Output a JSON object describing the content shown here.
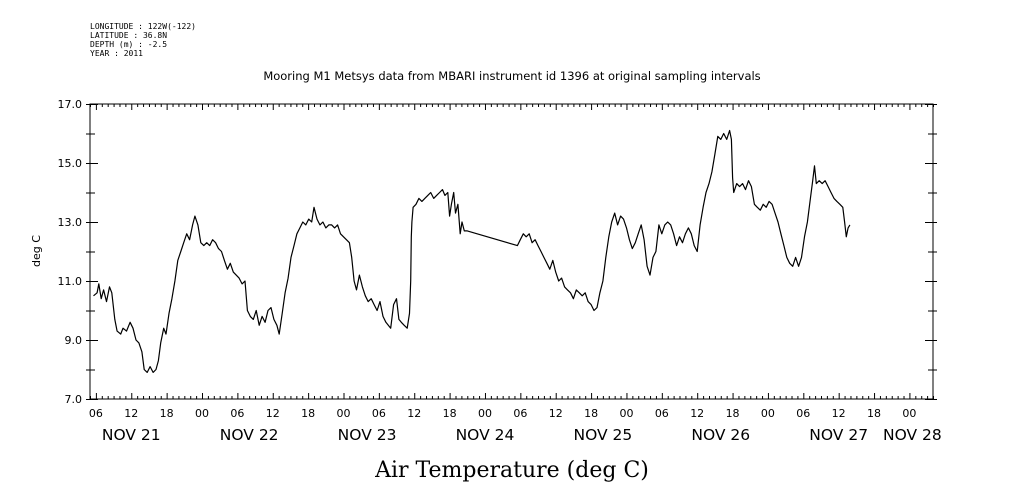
{
  "header": {
    "lines": [
      "LONGITUDE : 122W(-122)",
      "LATITUDE : 36.8N",
      "DEPTH (m) : -2.5",
      "YEAR : 2011"
    ]
  },
  "chart_data": {
    "type": "line",
    "title": "Mooring M1 Metsys data from MBARI instrument id 1396 at original sampling intervals",
    "xlabel": "Air Temperature (deg C)",
    "ylabel": "deg C",
    "ylim": [
      7.0,
      17.0
    ],
    "yticks": [
      "7.0",
      "9.0",
      "11.0",
      "13.0",
      "15.0",
      "17.0"
    ],
    "x_unit": "hours since 00Z NOV 21 2011",
    "xlim": [
      5,
      148
    ],
    "hour_ticks": [
      {
        "h": 6,
        "label": "06"
      },
      {
        "h": 12,
        "label": "12"
      },
      {
        "h": 18,
        "label": "18"
      },
      {
        "h": 24,
        "label": "00"
      },
      {
        "h": 30,
        "label": "06"
      },
      {
        "h": 36,
        "label": "12"
      },
      {
        "h": 42,
        "label": "18"
      },
      {
        "h": 48,
        "label": "00"
      },
      {
        "h": 54,
        "label": "06"
      },
      {
        "h": 60,
        "label": "12"
      },
      {
        "h": 66,
        "label": "18"
      },
      {
        "h": 72,
        "label": "00"
      },
      {
        "h": 78,
        "label": "06"
      },
      {
        "h": 84,
        "label": "12"
      },
      {
        "h": 90,
        "label": "18"
      },
      {
        "h": 96,
        "label": "00"
      },
      {
        "h": 102,
        "label": "06"
      },
      {
        "h": 108,
        "label": "12"
      },
      {
        "h": 114,
        "label": "18"
      },
      {
        "h": 120,
        "label": "00"
      },
      {
        "h": 126,
        "label": "06"
      },
      {
        "h": 132,
        "label": "12"
      },
      {
        "h": 138,
        "label": "18"
      },
      {
        "h": 144,
        "label": "00"
      }
    ],
    "day_labels": [
      {
        "h": 12,
        "label": "NOV 21"
      },
      {
        "h": 32,
        "label": "NOV 22"
      },
      {
        "h": 52,
        "label": "NOV 23"
      },
      {
        "h": 72,
        "label": "NOV 24"
      },
      {
        "h": 92,
        "label": "NOV 25"
      },
      {
        "h": 112,
        "label": "NOV 26"
      },
      {
        "h": 132,
        "label": "NOV 27"
      },
      {
        "h": 144.5,
        "label": "NOV 28"
      }
    ],
    "series": [
      {
        "color": "#000000",
        "points": [
          [
            5.6,
            10.5
          ],
          [
            6.2,
            10.6
          ],
          [
            6.5,
            10.9
          ],
          [
            6.9,
            10.4
          ],
          [
            7.3,
            10.7
          ],
          [
            7.8,
            10.3
          ],
          [
            8.3,
            10.8
          ],
          [
            8.7,
            10.6
          ],
          [
            9.2,
            9.7
          ],
          [
            9.6,
            9.3
          ],
          [
            10.2,
            9.2
          ],
          [
            10.6,
            9.4
          ],
          [
            11.2,
            9.3
          ],
          [
            11.8,
            9.6
          ],
          [
            12.3,
            9.4
          ],
          [
            12.8,
            9.0
          ],
          [
            13.3,
            8.9
          ],
          [
            13.8,
            8.6
          ],
          [
            14.2,
            8.0
          ],
          [
            14.7,
            7.9
          ],
          [
            15.2,
            8.1
          ],
          [
            15.7,
            7.9
          ],
          [
            16.2,
            8.0
          ],
          [
            16.6,
            8.3
          ],
          [
            17.0,
            8.9
          ],
          [
            17.5,
            9.4
          ],
          [
            17.9,
            9.2
          ],
          [
            18.4,
            9.9
          ],
          [
            18.9,
            10.4
          ],
          [
            19.4,
            11.0
          ],
          [
            19.9,
            11.7
          ],
          [
            20.4,
            12.0
          ],
          [
            20.9,
            12.3
          ],
          [
            21.4,
            12.6
          ],
          [
            21.9,
            12.4
          ],
          [
            22.4,
            12.9
          ],
          [
            22.8,
            13.2
          ],
          [
            23.3,
            12.9
          ],
          [
            23.8,
            12.3
          ],
          [
            24.3,
            12.2
          ],
          [
            24.8,
            12.3
          ],
          [
            25.3,
            12.2
          ],
          [
            25.8,
            12.4
          ],
          [
            26.3,
            12.3
          ],
          [
            26.8,
            12.1
          ],
          [
            27.3,
            12.0
          ],
          [
            27.8,
            11.7
          ],
          [
            28.3,
            11.4
          ],
          [
            28.8,
            11.6
          ],
          [
            29.3,
            11.3
          ],
          [
            29.8,
            11.2
          ],
          [
            30.3,
            11.1
          ],
          [
            30.8,
            10.9
          ],
          [
            31.3,
            11.0
          ],
          [
            31.7,
            10.0
          ],
          [
            32.2,
            9.8
          ],
          [
            32.7,
            9.7
          ],
          [
            33.2,
            10.0
          ],
          [
            33.7,
            9.5
          ],
          [
            34.2,
            9.8
          ],
          [
            34.7,
            9.6
          ],
          [
            35.2,
            10.0
          ],
          [
            35.7,
            10.1
          ],
          [
            36.2,
            9.7
          ],
          [
            36.7,
            9.5
          ],
          [
            37.1,
            9.2
          ],
          [
            37.6,
            9.9
          ],
          [
            38.1,
            10.6
          ],
          [
            38.6,
            11.1
          ],
          [
            39.1,
            11.8
          ],
          [
            39.6,
            12.2
          ],
          [
            40.1,
            12.6
          ],
          [
            40.6,
            12.8
          ],
          [
            41.1,
            13.0
          ],
          [
            41.6,
            12.9
          ],
          [
            42.1,
            13.1
          ],
          [
            42.6,
            13.0
          ],
          [
            43.0,
            13.5
          ],
          [
            43.5,
            13.1
          ],
          [
            44.0,
            12.9
          ],
          [
            44.5,
            13.0
          ],
          [
            45.0,
            12.8
          ],
          [
            45.5,
            12.9
          ],
          [
            46.0,
            12.9
          ],
          [
            46.5,
            12.8
          ],
          [
            47.0,
            12.9
          ],
          [
            47.5,
            12.6
          ],
          [
            48.0,
            12.5
          ],
          [
            48.5,
            12.4
          ],
          [
            49.0,
            12.3
          ],
          [
            49.4,
            11.8
          ],
          [
            49.8,
            11.0
          ],
          [
            50.2,
            10.7
          ],
          [
            50.7,
            11.2
          ],
          [
            51.2,
            10.8
          ],
          [
            51.7,
            10.5
          ],
          [
            52.2,
            10.3
          ],
          [
            52.7,
            10.4
          ],
          [
            53.2,
            10.2
          ],
          [
            53.7,
            10.0
          ],
          [
            54.2,
            10.3
          ],
          [
            54.7,
            9.8
          ],
          [
            55.2,
            9.6
          ],
          [
            55.6,
            9.5
          ],
          [
            56.0,
            9.4
          ],
          [
            56.5,
            10.2
          ],
          [
            57.0,
            10.4
          ],
          [
            57.4,
            9.7
          ],
          [
            57.8,
            9.6
          ],
          [
            58.3,
            9.5
          ],
          [
            58.8,
            9.4
          ],
          [
            59.2,
            9.9
          ],
          [
            59.4,
            11.0
          ],
          [
            59.5,
            12.5
          ],
          [
            59.6,
            13.0
          ],
          [
            59.8,
            13.5
          ],
          [
            60.3,
            13.6
          ],
          [
            60.8,
            13.8
          ],
          [
            61.3,
            13.7
          ],
          [
            61.8,
            13.8
          ],
          [
            62.3,
            13.9
          ],
          [
            62.8,
            14.0
          ],
          [
            63.3,
            13.8
          ],
          [
            63.8,
            13.9
          ],
          [
            64.3,
            14.0
          ],
          [
            64.8,
            14.1
          ],
          [
            65.2,
            13.9
          ],
          [
            65.7,
            14.0
          ],
          [
            66.0,
            13.2
          ],
          [
            66.3,
            13.6
          ],
          [
            66.7,
            14.0
          ],
          [
            67.0,
            13.3
          ],
          [
            67.4,
            13.6
          ],
          [
            67.8,
            12.6
          ],
          [
            68.1,
            13.0
          ],
          [
            68.5,
            12.7
          ],
          [
            69.0,
            12.7
          ],
          [
            77.5,
            12.2
          ],
          [
            78.0,
            12.4
          ],
          [
            78.5,
            12.6
          ],
          [
            79.0,
            12.5
          ],
          [
            79.5,
            12.6
          ],
          [
            80.0,
            12.3
          ],
          [
            80.5,
            12.4
          ],
          [
            81.0,
            12.2
          ],
          [
            81.5,
            12.0
          ],
          [
            82.0,
            11.8
          ],
          [
            82.5,
            11.6
          ],
          [
            83.0,
            11.4
          ],
          [
            83.5,
            11.7
          ],
          [
            84.0,
            11.3
          ],
          [
            84.5,
            11.0
          ],
          [
            85.0,
            11.1
          ],
          [
            85.5,
            10.8
          ],
          [
            86.0,
            10.7
          ],
          [
            86.5,
            10.6
          ],
          [
            87.0,
            10.4
          ],
          [
            87.5,
            10.7
          ],
          [
            88.0,
            10.6
          ],
          [
            88.5,
            10.5
          ],
          [
            89.0,
            10.6
          ],
          [
            89.5,
            10.3
          ],
          [
            90.0,
            10.2
          ],
          [
            90.5,
            10.0
          ],
          [
            91.0,
            10.1
          ],
          [
            91.5,
            10.6
          ],
          [
            92.0,
            11.0
          ],
          [
            92.5,
            11.8
          ],
          [
            93.0,
            12.5
          ],
          [
            93.5,
            13.0
          ],
          [
            94.0,
            13.3
          ],
          [
            94.5,
            12.9
          ],
          [
            95.0,
            13.2
          ],
          [
            95.5,
            13.1
          ],
          [
            96.0,
            12.8
          ],
          [
            96.5,
            12.4
          ],
          [
            97.0,
            12.1
          ],
          [
            97.5,
            12.3
          ],
          [
            98.0,
            12.6
          ],
          [
            98.5,
            12.9
          ],
          [
            99.0,
            12.4
          ],
          [
            99.5,
            11.5
          ],
          [
            100.0,
            11.2
          ],
          [
            100.5,
            11.8
          ],
          [
            101.0,
            12.0
          ],
          [
            101.5,
            12.9
          ],
          [
            102.0,
            12.6
          ],
          [
            102.5,
            12.9
          ],
          [
            103.0,
            13.0
          ],
          [
            103.5,
            12.9
          ],
          [
            104.0,
            12.6
          ],
          [
            104.5,
            12.2
          ],
          [
            105.0,
            12.5
          ],
          [
            105.5,
            12.3
          ],
          [
            106.0,
            12.6
          ],
          [
            106.5,
            12.8
          ],
          [
            107.0,
            12.6
          ],
          [
            107.5,
            12.2
          ],
          [
            108.0,
            12.0
          ],
          [
            108.5,
            12.9
          ],
          [
            109.0,
            13.5
          ],
          [
            109.5,
            14.0
          ],
          [
            110.0,
            14.3
          ],
          [
            110.5,
            14.7
          ],
          [
            111.0,
            15.3
          ],
          [
            111.5,
            15.9
          ],
          [
            112.0,
            15.8
          ],
          [
            112.5,
            16.0
          ],
          [
            113.0,
            15.8
          ],
          [
            113.5,
            16.1
          ],
          [
            113.8,
            15.8
          ],
          [
            114.0,
            14.5
          ],
          [
            114.2,
            14.0
          ],
          [
            114.7,
            14.3
          ],
          [
            115.2,
            14.2
          ],
          [
            115.7,
            14.3
          ],
          [
            116.2,
            14.1
          ],
          [
            116.7,
            14.4
          ],
          [
            117.2,
            14.2
          ],
          [
            117.7,
            13.6
          ],
          [
            118.2,
            13.5
          ],
          [
            118.7,
            13.4
          ],
          [
            119.2,
            13.6
          ],
          [
            119.7,
            13.5
          ],
          [
            120.2,
            13.7
          ],
          [
            120.7,
            13.6
          ],
          [
            121.2,
            13.3
          ],
          [
            121.7,
            13.0
          ],
          [
            122.2,
            12.6
          ],
          [
            122.7,
            12.2
          ],
          [
            123.2,
            11.8
          ],
          [
            123.7,
            11.6
          ],
          [
            124.2,
            11.5
          ],
          [
            124.7,
            11.8
          ],
          [
            125.2,
            11.5
          ],
          [
            125.7,
            11.8
          ],
          [
            126.2,
            12.5
          ],
          [
            126.7,
            13.0
          ],
          [
            127.2,
            13.8
          ],
          [
            127.6,
            14.4
          ],
          [
            127.9,
            14.9
          ],
          [
            128.2,
            14.3
          ],
          [
            128.7,
            14.4
          ],
          [
            129.2,
            14.3
          ],
          [
            129.7,
            14.4
          ],
          [
            130.2,
            14.2
          ],
          [
            130.7,
            14.0
          ],
          [
            131.2,
            13.8
          ],
          [
            131.7,
            13.7
          ],
          [
            132.2,
            13.6
          ],
          [
            132.7,
            13.5
          ],
          [
            133.0,
            13.0
          ],
          [
            133.3,
            12.5
          ],
          [
            133.6,
            12.8
          ],
          [
            133.9,
            12.9
          ]
        ]
      }
    ],
    "grid": false,
    "legend": "none"
  }
}
